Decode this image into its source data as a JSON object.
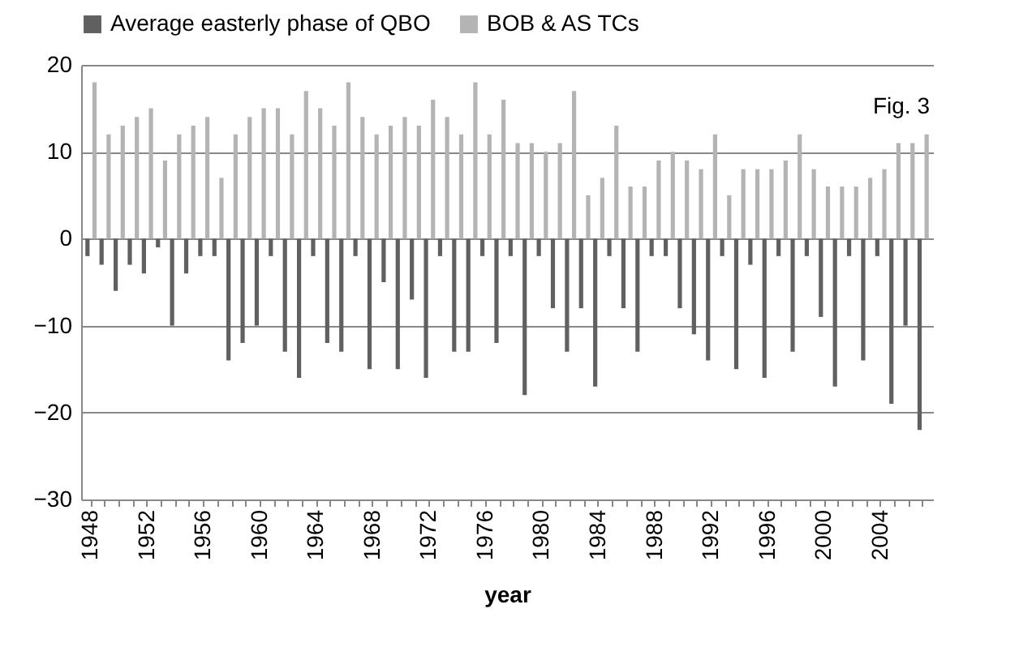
{
  "chart_data": {
    "type": "bar",
    "xlabel": "year",
    "annotations": [
      "Fig. 3"
    ],
    "categories": [
      "1948",
      null,
      null,
      null,
      "1952",
      null,
      null,
      null,
      "1956",
      null,
      null,
      null,
      "1960",
      null,
      null,
      null,
      "1964",
      null,
      null,
      null,
      "1968",
      null,
      null,
      null,
      "1972",
      null,
      null,
      null,
      "1976",
      null,
      null,
      null,
      "1980",
      null,
      null,
      null,
      "1984",
      null,
      null,
      null,
      "1988",
      null,
      null,
      null,
      "1992",
      null,
      null,
      null,
      "1996",
      null,
      null,
      null,
      "2000",
      null,
      null,
      null,
      "2004",
      null,
      null,
      null
    ],
    "series": [
      {
        "name": "Average easterly phase of QBO",
        "color": "#606060",
        "values": [
          -2,
          -3,
          -6,
          -3,
          -4,
          -1,
          -10,
          -4,
          -2,
          -2,
          -14,
          -12,
          -10,
          -2,
          -13,
          -16,
          -2,
          -12,
          -13,
          -2,
          -15,
          -5,
          -15,
          -7,
          -16,
          -2,
          -13,
          -13,
          -2,
          -12,
          -2,
          -18,
          -2,
          -8,
          -13,
          -8,
          -17,
          -2,
          -8,
          -13,
          -2,
          -2,
          -8,
          -11,
          -14,
          -2,
          -15,
          -3,
          -16,
          -2,
          -13,
          -2,
          -9,
          -17,
          -2,
          -14,
          -2,
          -19,
          -10,
          -22
        ]
      },
      {
        "name": "BOB & AS TCs",
        "color": "#b4b4b4",
        "values": [
          18,
          12,
          13,
          14,
          15,
          9,
          12,
          13,
          14,
          7,
          12,
          14,
          15,
          15,
          12,
          17,
          15,
          13,
          18,
          14,
          12,
          13,
          14,
          13,
          16,
          14,
          12,
          18,
          12,
          16,
          11,
          11,
          10,
          11,
          17,
          5,
          7,
          13,
          6,
          6,
          9,
          10,
          9,
          8,
          12,
          5,
          8,
          8,
          8,
          9,
          12,
          8,
          6,
          6,
          6,
          7,
          8,
          11,
          11,
          12
        ]
      }
    ],
    "ylim": [
      -30,
      20
    ],
    "yticks": [
      -30,
      -20,
      -10,
      0,
      10,
      20
    ],
    "grid": "y",
    "legend": "top"
  }
}
